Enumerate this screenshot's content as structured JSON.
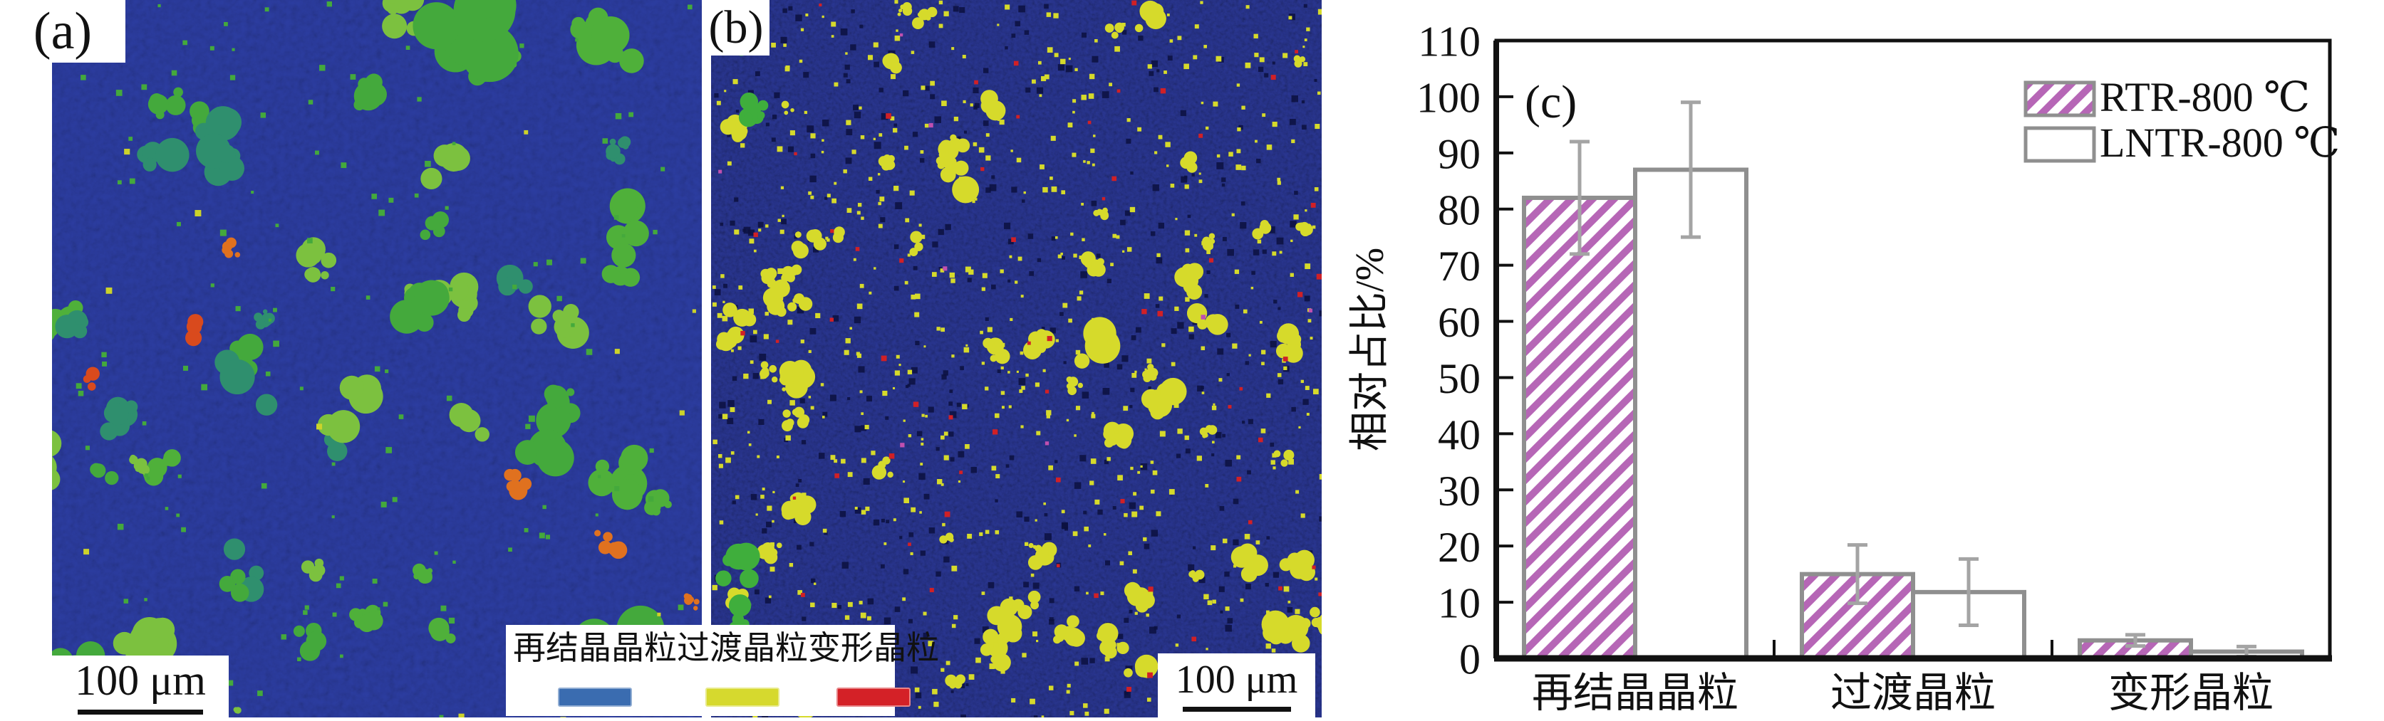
{
  "figure": {
    "panel_a_label": "(a)",
    "panel_b_label": "(b)",
    "scale_bar_a": "100 μm",
    "scale_bar_b": "100 μm"
  },
  "grain_legend": {
    "items": [
      {
        "label": "再结晶晶粒",
        "color": "#3a6cb0"
      },
      {
        "label": "过渡晶粒",
        "color": "#d6d92e"
      },
      {
        "label": "变形晶粒",
        "color": "#d42127"
      }
    ]
  },
  "micrographs": {
    "a": {
      "base": "#2c3da2",
      "grain_colors": [
        "#44a93c",
        "#4fb03a",
        "#7cc13f",
        "#2f8f6e"
      ],
      "accent_colors": [
        "#e0711f",
        "#d94a1d"
      ],
      "speck_color": "#ccd32a"
    },
    "b": {
      "base": "#2a3795",
      "grain_color": "#d6da2b",
      "dot_color": "#d12026",
      "magenta_color": "#c050b0",
      "green_color": "#3fae3c",
      "dark_speck_color": "#0c1140"
    }
  },
  "chart_data": {
    "type": "bar",
    "panel_label": "(c)",
    "title": "",
    "xlabel": "",
    "ylabel": "相对占比/%",
    "ylim": [
      0,
      110
    ],
    "ytick_step": 10,
    "grid": false,
    "legend_position": "top-right",
    "categories": [
      "再结晶晶粒",
      "过渡晶粒",
      "变形晶粒"
    ],
    "series": [
      {
        "name": "RTR-800 ℃",
        "values": [
          82,
          15,
          3.2
        ],
        "errors": [
          10,
          5.2,
          1
        ],
        "fill": "hatch",
        "hatch_color": "#b666b6",
        "edge_color": "#8f8f8f"
      },
      {
        "name": "LNTR-800 ℃",
        "values": [
          87,
          11.8,
          1.2
        ],
        "errors": [
          12,
          5.9,
          0.9
        ],
        "fill": "#ffffff",
        "edge_color": "#8f8f8f"
      }
    ],
    "error_bar_color": "#a4a4a4",
    "axis_color": "#111111"
  }
}
